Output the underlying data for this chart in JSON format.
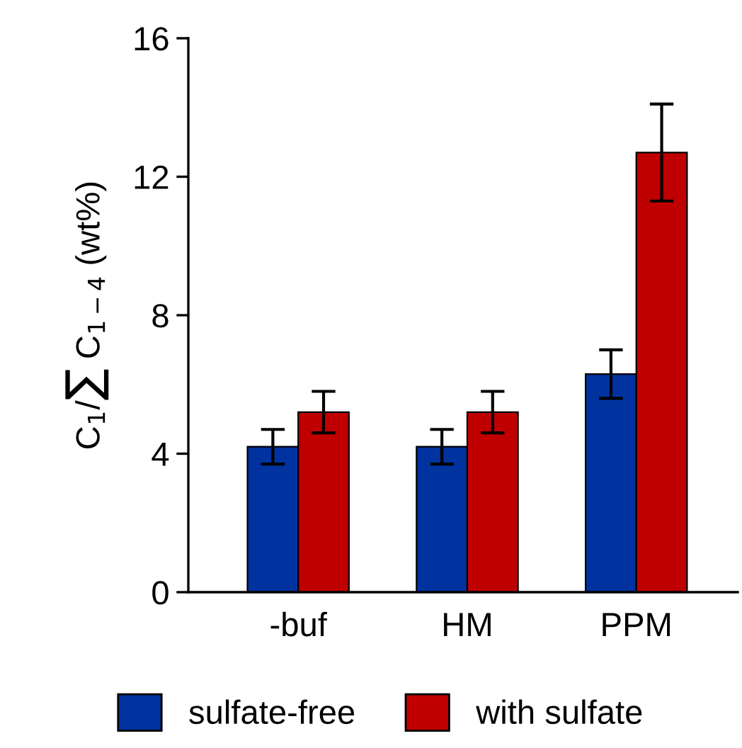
{
  "chart_data": {
    "type": "bar",
    "ylabel": "C$_{1}$/∑ C$_{1−4}$ (wt%)",
    "categories": [
      "-buf",
      "HM",
      "PPM"
    ],
    "series": [
      {
        "name": "sulfate-free",
        "color": "#0033a0",
        "values": [
          4.2,
          4.2,
          6.3
        ],
        "errors": [
          0.5,
          0.5,
          0.7
        ]
      },
      {
        "name": "with sulfate",
        "color": "#c00000",
        "values": [
          5.2,
          5.2,
          12.7
        ],
        "errors": [
          0.6,
          0.6,
          1.4
        ]
      }
    ],
    "ylim": [
      0,
      16
    ],
    "yticks": [
      0,
      4,
      8,
      12,
      16
    ],
    "grid": false,
    "legend": "bottom"
  }
}
